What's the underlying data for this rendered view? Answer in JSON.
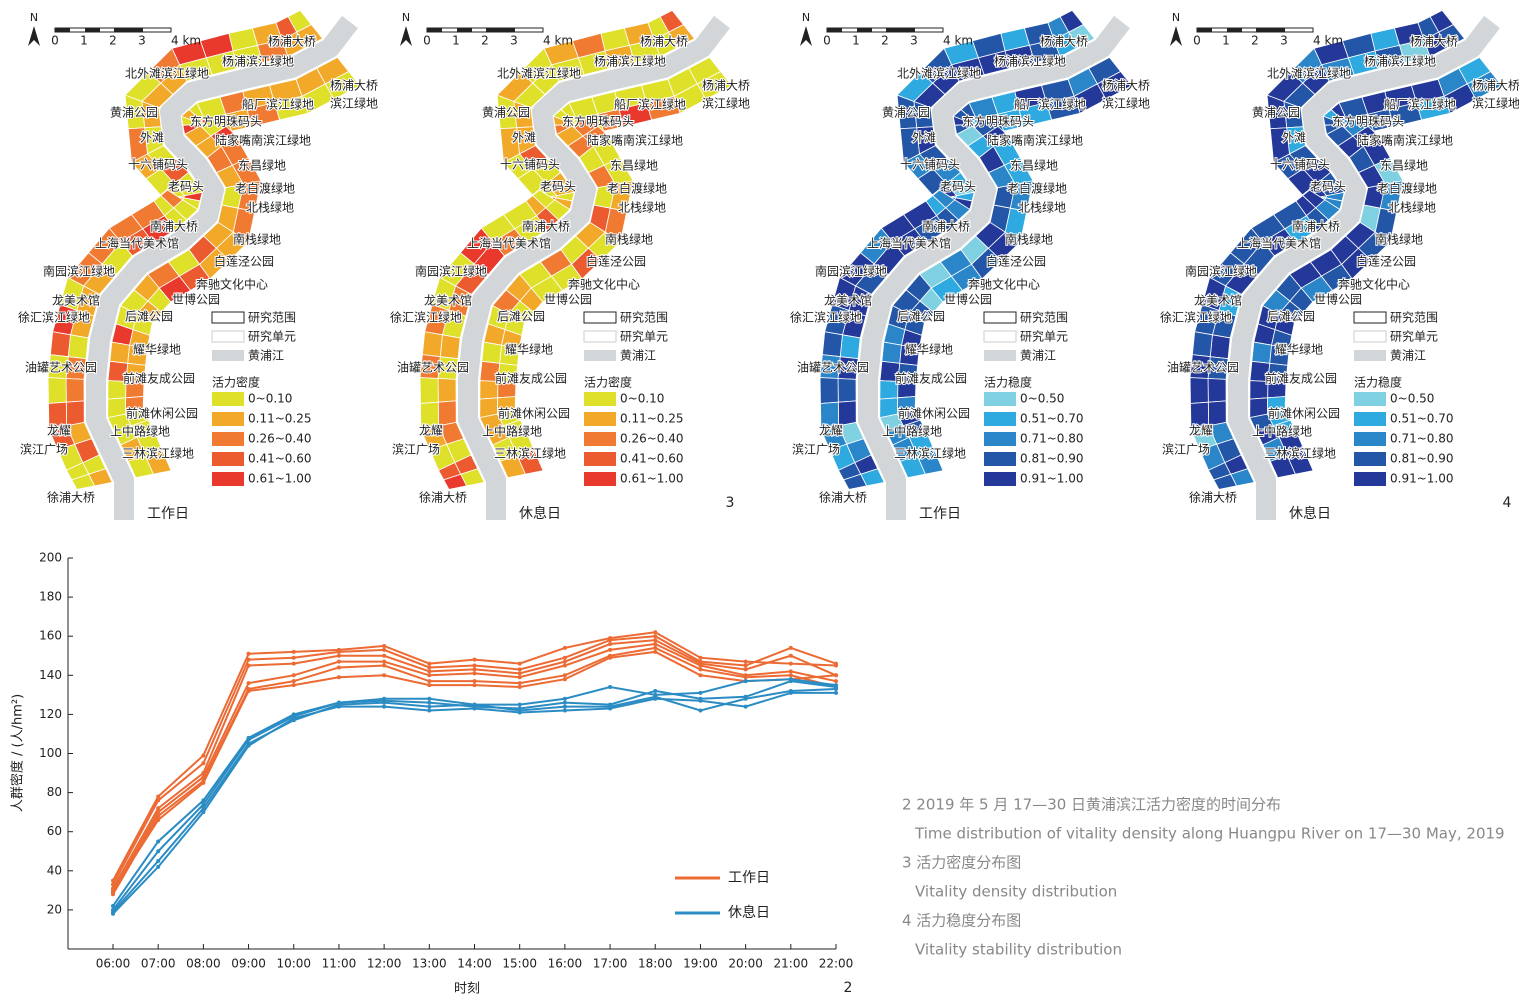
{
  "maps": {
    "north": "N",
    "scale_labels": [
      "0",
      "1",
      "2",
      "3",
      "4 km"
    ],
    "places": [
      "杨浦大桥",
      "杨浦滨江绿地",
      "北外滩滨江绿地",
      "杨浦大桥",
      "滨江绿地",
      "黄浦公园",
      "船厂滨江绿地",
      "东方明珠码头",
      "外滩",
      "陆家嘴南滨江绿地",
      "十六铺码头",
      "东昌绿地",
      "老码头",
      "老白渡绿地",
      "北栈绿地",
      "南浦大桥",
      "上海当代美术馆",
      "南栈绿地",
      "白莲泾公园",
      "南园滨江绿地",
      "奔驰文化中心",
      "龙美术馆",
      "世博公园",
      "徐汇滨江绿地",
      "后滩公园",
      "耀华绿地",
      "油罐艺术公园",
      "前滩友成公园",
      "前滩休闲公园",
      "龙耀",
      "上中路绿地",
      "滨江广场",
      "三林滨江绿地",
      "徐浦大桥"
    ],
    "legend_base": [
      "研究范围",
      "研究单元",
      "黄浦江"
    ],
    "panels": [
      {
        "day": "工作日",
        "legend_title": "活力密度",
        "classes": [
          {
            "label": "0~0.10",
            "color": "#dfe02a"
          },
          {
            "label": "0.11~0.25",
            "color": "#f2a92a"
          },
          {
            "label": "0.26~0.40",
            "color": "#f07a32"
          },
          {
            "label": "0.41~0.60",
            "color": "#ec5a30"
          },
          {
            "label": "0.61~1.00",
            "color": "#e8392c"
          }
        ]
      },
      {
        "day": "休息日",
        "legend_title": "活力密度",
        "classes": [
          {
            "label": "0~0.10",
            "color": "#dfe02a"
          },
          {
            "label": "0.11~0.25",
            "color": "#f2a92a"
          },
          {
            "label": "0.26~0.40",
            "color": "#f07a32"
          },
          {
            "label": "0.41~0.60",
            "color": "#ec5a30"
          },
          {
            "label": "0.61~1.00",
            "color": "#e8392c"
          }
        ]
      },
      {
        "day": "工作日",
        "legend_title": "活力稳度",
        "classes": [
          {
            "label": "0~0.50",
            "color": "#7fd0e0"
          },
          {
            "label": "0.51~0.70",
            "color": "#2eaae0"
          },
          {
            "label": "0.71~0.80",
            "color": "#2a86c8"
          },
          {
            "label": "0.81~0.90",
            "color": "#2456a8"
          },
          {
            "label": "0.91~1.00",
            "color": "#24389a"
          }
        ]
      },
      {
        "day": "休息日",
        "legend_title": "活力稳度",
        "classes": [
          {
            "label": "0~0.50",
            "color": "#7fd0e0"
          },
          {
            "label": "0.51~0.70",
            "color": "#2eaae0"
          },
          {
            "label": "0.71~0.80",
            "color": "#2a86c8"
          },
          {
            "label": "0.81~0.90",
            "color": "#2456a8"
          },
          {
            "label": "0.91~1.00",
            "color": "#24389a"
          }
        ]
      }
    ],
    "figure_numbers": [
      "3",
      "4"
    ]
  },
  "chart_data": {
    "type": "line",
    "figure_number": "2",
    "x_label": "时刻",
    "y_label": "人群密度 / (人/hm²)",
    "categories": [
      "06:00",
      "07:00",
      "08:00",
      "09:00",
      "10:00",
      "11:00",
      "12:00",
      "13:00",
      "14:00",
      "15:00",
      "16:00",
      "17:00",
      "18:00",
      "19:00",
      "20:00",
      "21:00",
      "22:00"
    ],
    "ylim": [
      0,
      200
    ],
    "yticks": [
      20,
      40,
      60,
      80,
      100,
      120,
      140,
      160,
      180,
      200
    ],
    "series": [
      {
        "name": "工作日",
        "color": "#ec6a33",
        "lines": [
          [
            35,
            78,
            99,
            151,
            152,
            153,
            155,
            146,
            148,
            146,
            154,
            159,
            162,
            149,
            147,
            146,
            145
          ],
          [
            33,
            76,
            95,
            148,
            149,
            152,
            153,
            144,
            145,
            143,
            149,
            158,
            160,
            147,
            145,
            154,
            146
          ],
          [
            31,
            72,
            90,
            145,
            146,
            150,
            150,
            142,
            143,
            141,
            147,
            156,
            158,
            146,
            143,
            150,
            140
          ],
          [
            29,
            70,
            88,
            136,
            140,
            147,
            147,
            140,
            141,
            139,
            145,
            153,
            156,
            145,
            140,
            142,
            137
          ],
          [
            28,
            68,
            86,
            133,
            137,
            144,
            145,
            137,
            137,
            136,
            140,
            150,
            154,
            143,
            139,
            140,
            134
          ],
          [
            30,
            66,
            85,
            132,
            135,
            139,
            140,
            135,
            135,
            134,
            138,
            149,
            152,
            140,
            137,
            138,
            140
          ]
        ]
      },
      {
        "name": "休息日",
        "color": "#2b8cc4",
        "lines": [
          [
            22,
            55,
            76,
            108,
            120,
            126,
            128,
            128,
            125,
            125,
            128,
            134,
            130,
            131,
            137,
            138,
            135
          ],
          [
            20,
            50,
            74,
            107,
            119,
            126,
            127,
            126,
            124,
            123,
            126,
            125,
            132,
            128,
            129,
            137,
            134
          ],
          [
            19,
            45,
            72,
            105,
            117,
            125,
            126,
            124,
            125,
            122,
            124,
            124,
            129,
            122,
            128,
            132,
            133
          ],
          [
            18,
            42,
            70,
            104,
            118,
            124,
            124,
            122,
            123,
            121,
            122,
            123,
            128,
            127,
            124,
            131,
            131
          ]
        ]
      }
    ]
  },
  "captions": [
    {
      "title": "2 2019 年 5 月 17—30 日黄浦滨江活力密度的时间分布",
      "english": "Time distribution of vitality density along Huangpu River on 17—30 May, 2019"
    },
    {
      "title": "3 活力密度分布图",
      "english": "Vitality density distribution"
    },
    {
      "title": "4 活力稳度分布图",
      "english": "Vitality stability distribution"
    }
  ]
}
